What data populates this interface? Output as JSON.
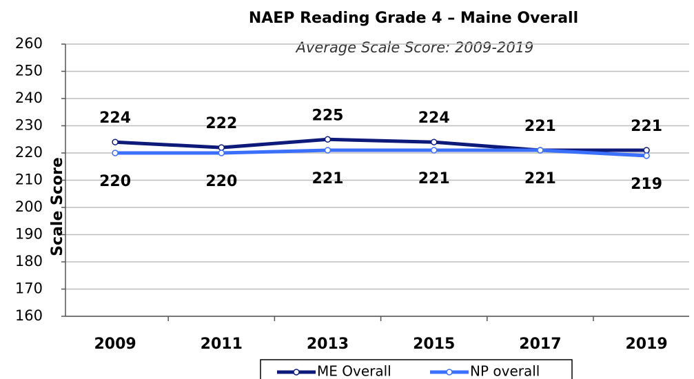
{
  "chart_data": {
    "type": "line",
    "title": "NAEP Reading Grade 4 – Maine Overall",
    "subtitle": "Average Scale Score: 2009-2019",
    "y_label": "Scale Score",
    "categories": [
      "2009",
      "2011",
      "2013",
      "2015",
      "2017",
      "2019"
    ],
    "series": [
      {
        "name": "ME Overall",
        "color": "#0d1a7a",
        "values": [
          224,
          222,
          225,
          224,
          221,
          221
        ]
      },
      {
        "name": "NP overall",
        "color": "#3a6fff",
        "values": [
          220,
          220,
          221,
          221,
          221,
          219
        ]
      }
    ],
    "ylim": [
      160,
      260
    ],
    "yticks": [
      160,
      170,
      180,
      190,
      200,
      210,
      220,
      230,
      240,
      250,
      260
    ],
    "grid": true,
    "legend": "bottom"
  }
}
